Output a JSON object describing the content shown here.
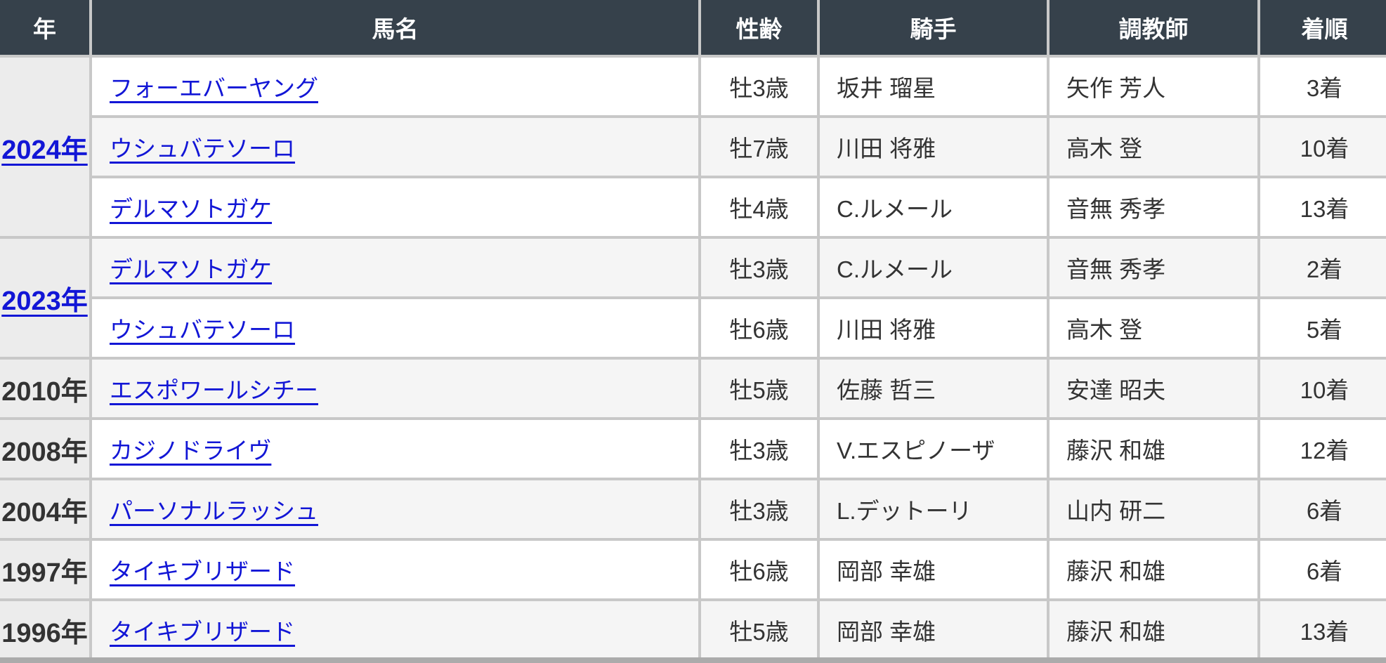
{
  "header": {
    "columns": [
      {
        "key": "year",
        "label": "年"
      },
      {
        "key": "horse",
        "label": "馬名"
      },
      {
        "key": "sex_age",
        "label": "性齢"
      },
      {
        "key": "jockey",
        "label": "騎手"
      },
      {
        "key": "trainer",
        "label": "調教師"
      },
      {
        "key": "result",
        "label": "着順"
      }
    ]
  },
  "groups": [
    {
      "year": "2024年",
      "year_is_link": true,
      "rows": [
        {
          "horse": "フォーエバーヤング",
          "sex_age": "牡3歳",
          "jockey": "坂井 瑠星",
          "trainer": "矢作 芳人",
          "result": "3着"
        },
        {
          "horse": "ウシュバテソーロ",
          "sex_age": "牡7歳",
          "jockey": "川田 将雅",
          "trainer": "高木 登",
          "result": "10着"
        },
        {
          "horse": "デルマソトガケ",
          "sex_age": "牡4歳",
          "jockey": "C.ルメール",
          "trainer": "音無 秀孝",
          "result": "13着"
        }
      ]
    },
    {
      "year": "2023年",
      "year_is_link": true,
      "rows": [
        {
          "horse": "デルマソトガケ",
          "sex_age": "牡3歳",
          "jockey": "C.ルメール",
          "trainer": "音無 秀孝",
          "result": "2着"
        },
        {
          "horse": "ウシュバテソーロ",
          "sex_age": "牡6歳",
          "jockey": "川田 将雅",
          "trainer": "高木 登",
          "result": "5着"
        }
      ]
    },
    {
      "year": "2010年",
      "year_is_link": false,
      "rows": [
        {
          "horse": "エスポワールシチー",
          "sex_age": "牡5歳",
          "jockey": "佐藤 哲三",
          "trainer": "安達 昭夫",
          "result": "10着"
        }
      ]
    },
    {
      "year": "2008年",
      "year_is_link": false,
      "rows": [
        {
          "horse": "カジノドライヴ",
          "sex_age": "牡3歳",
          "jockey": "V.エスピノーザ",
          "trainer": "藤沢 和雄",
          "result": "12着"
        }
      ]
    },
    {
      "year": "2004年",
      "year_is_link": false,
      "rows": [
        {
          "horse": "パーソナルラッシュ",
          "sex_age": "牡3歳",
          "jockey": "L.デットーリ",
          "trainer": "山内 研二",
          "result": "6着"
        }
      ]
    },
    {
      "year": "1997年",
      "year_is_link": false,
      "rows": [
        {
          "horse": "タイキブリザード",
          "sex_age": "牡6歳",
          "jockey": "岡部 幸雄",
          "trainer": "藤沢 和雄",
          "result": "6着"
        }
      ]
    },
    {
      "year": "1996年",
      "year_is_link": false,
      "rows": [
        {
          "horse": "タイキブリザード",
          "sex_age": "牡5歳",
          "jockey": "岡部 幸雄",
          "trainer": "藤沢 和雄",
          "result": "13着"
        }
      ]
    }
  ],
  "colors": {
    "header_bg": "#36414b",
    "header_text": "#ffffff",
    "link": "#1216d6",
    "text": "#333333",
    "year_col_bg": "#ececec",
    "stripe_bg": "#f5f5f5",
    "row_bg": "#ffffff",
    "border": "#c8c8c8",
    "scrollbar": "#ababab"
  }
}
